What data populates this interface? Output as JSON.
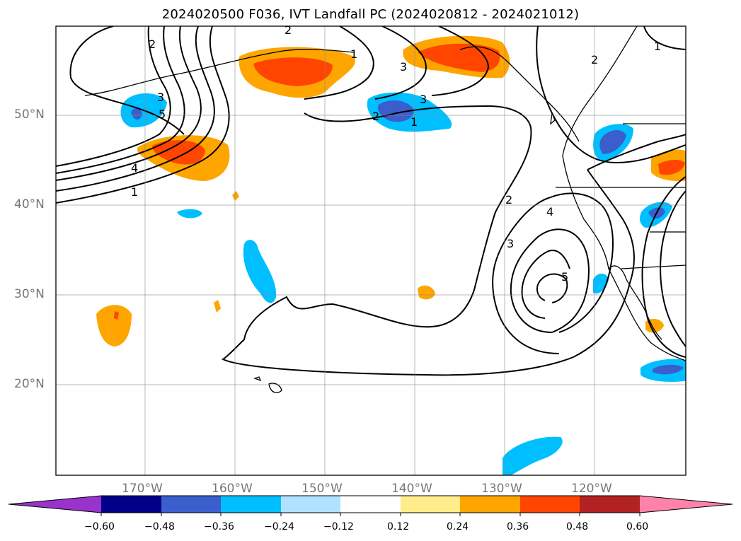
{
  "title": "2024020500 F036, IVT Landfall PC (2024020812 - 2024021012)",
  "map": {
    "lon_ticks": [
      "170°W",
      "160°W",
      "150°W",
      "140°W",
      "130°W",
      "120°W"
    ],
    "lat_ticks": [
      "50°N",
      "40°N",
      "30°N",
      "20°N"
    ],
    "extent": {
      "lon_min": -180,
      "lon_max": -110,
      "lat_min": 10,
      "lat_max": 60
    },
    "contour_labels": [
      "2",
      "3",
      "5",
      "4",
      "1",
      "2",
      "3",
      "1",
      "3",
      "1",
      "2",
      "3",
      "4",
      "5",
      "2",
      "1",
      "2"
    ]
  },
  "colorbar": {
    "tick_labels": [
      "−0.60",
      "−0.48",
      "−0.36",
      "−0.24",
      "−0.12",
      "0.12",
      "0.24",
      "0.36",
      "0.48",
      "0.60"
    ],
    "colors": [
      "#9933cc",
      "#00008b",
      "#3a5fcd",
      "#00bfff",
      "#b0e2ff",
      "#ffffff",
      "#ffec8b",
      "#ffa500",
      "#ff4500",
      "#b22222",
      "#ff83a8"
    ]
  }
}
